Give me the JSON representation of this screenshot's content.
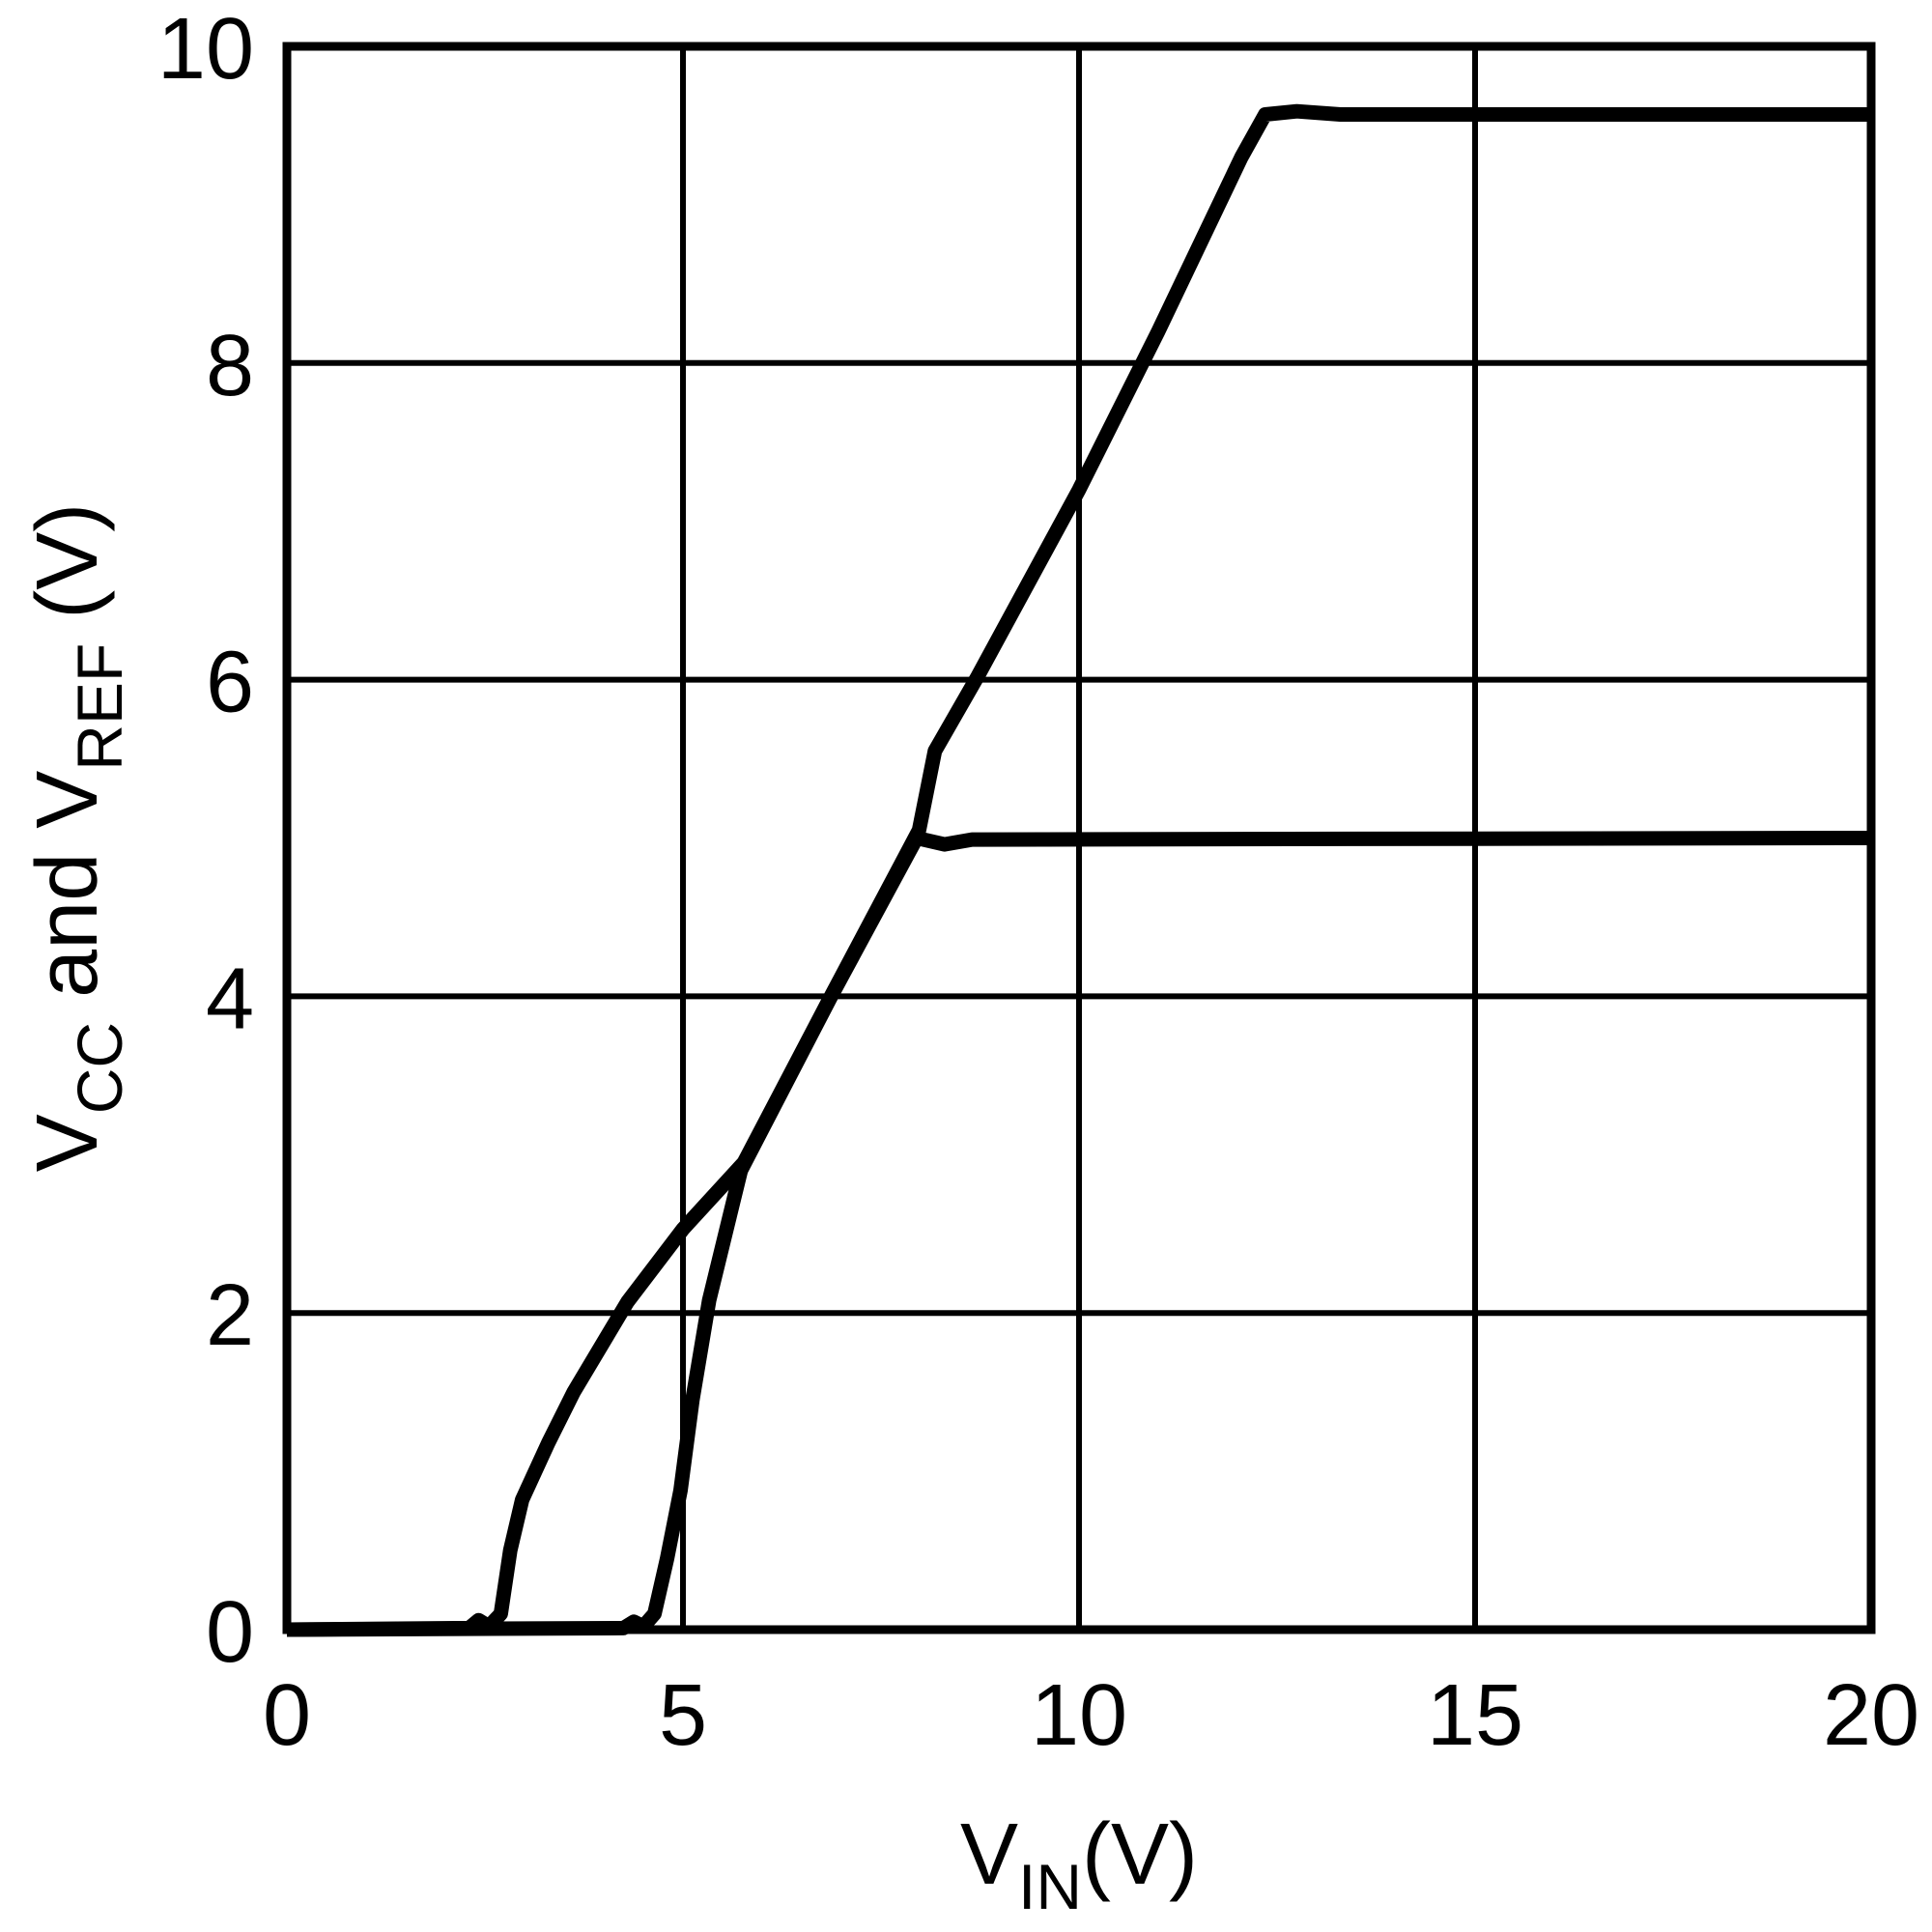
{
  "chart_data": {
    "type": "line",
    "title": "",
    "xlabel_plain": "VIN(V)",
    "ylabel_plain": "VCC and VREF (V)",
    "xlabel_segments": [
      {
        "text": "V"
      },
      {
        "text": "IN",
        "sub": true
      },
      {
        "text": "(V)"
      }
    ],
    "ylabel_segments": [
      {
        "text": "V"
      },
      {
        "text": "CC",
        "sub": true
      },
      {
        "text": " and V"
      },
      {
        "text": "REF",
        "sub": true
      },
      {
        "text": " (V)"
      }
    ],
    "xlim": [
      0,
      20
    ],
    "ylim": [
      0,
      10
    ],
    "x_ticks": [
      0,
      5,
      10,
      15,
      20
    ],
    "y_ticks": [
      0,
      2,
      4,
      6,
      8,
      10
    ],
    "x_tick_labels": [
      "0",
      "5",
      "10",
      "15",
      "20"
    ],
    "y_tick_labels": [
      "0",
      "2",
      "4",
      "6",
      "8",
      "10"
    ],
    "grid": true,
    "legend": "none",
    "colors": {
      "line": "#000000",
      "grid": "#000000",
      "frame": "#000000",
      "background": "#ffffff"
    },
    "series": [
      {
        "name": "VCC",
        "points": [
          [
            0,
            0
          ],
          [
            2.3,
            0.01
          ],
          [
            2.42,
            0.06
          ],
          [
            2.55,
            0.02
          ],
          [
            2.7,
            0.1
          ],
          [
            2.82,
            0.5
          ],
          [
            2.97,
            0.82
          ],
          [
            3.3,
            1.18
          ],
          [
            3.62,
            1.5
          ],
          [
            4.3,
            2.07
          ],
          [
            5.0,
            2.53
          ],
          [
            5.77,
            2.95
          ],
          [
            6.9,
            4.03
          ],
          [
            7.98,
            5.05
          ],
          [
            8.18,
            5.55
          ],
          [
            8.72,
            6.02
          ],
          [
            10,
            7.2
          ],
          [
            11,
            8.2
          ],
          [
            12.05,
            9.3
          ],
          [
            12.35,
            9.57
          ],
          [
            12.75,
            9.59
          ],
          [
            13.3,
            9.57
          ],
          [
            20,
            9.57
          ]
        ],
        "clamp_level": 9.57
      },
      {
        "name": "VREF",
        "points": [
          [
            0,
            0
          ],
          [
            4.25,
            0.01
          ],
          [
            4.38,
            0.05
          ],
          [
            4.5,
            0.02
          ],
          [
            4.64,
            0.1
          ],
          [
            4.8,
            0.45
          ],
          [
            4.97,
            0.88
          ],
          [
            5.12,
            1.45
          ],
          [
            5.33,
            2.08
          ],
          [
            5.73,
            2.9
          ],
          [
            6.86,
            3.99
          ],
          [
            7.95,
            5.0
          ],
          [
            8.3,
            4.96
          ],
          [
            8.65,
            4.99
          ],
          [
            20,
            5.0
          ]
        ],
        "clamp_level": 5.0
      }
    ]
  }
}
